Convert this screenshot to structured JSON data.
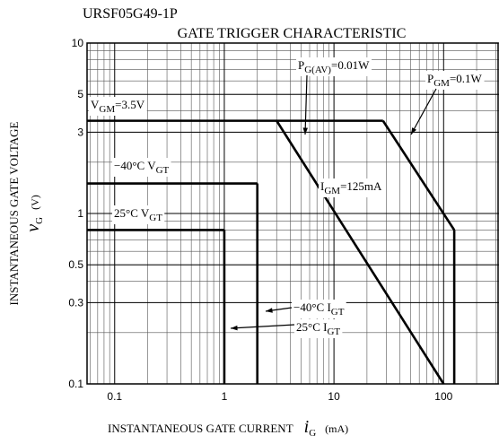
{
  "chart_data": {
    "type": "line",
    "title": "URSF05G49-1P",
    "subtitle": "GATE TRIGGER CHARACTERISTIC",
    "x_label": "INSTANTANEOUS GATE CURRENT",
    "x_symbol": [
      "i",
      "G"
    ],
    "x_unit": "(mA)",
    "y_label": "INSTANTANEOUS GATE VOLTAGE",
    "y_symbol": [
      "v",
      "G"
    ],
    "y_unit": "(V)",
    "log_x": true,
    "log_y": true,
    "grid": true,
    "minor_grid": true,
    "color": "#000000",
    "xlim": [
      0.056,
      320
    ],
    "xticks": [
      0.1,
      1,
      10,
      100
    ],
    "ylim": [
      0.1,
      10
    ],
    "yticks": [
      0.1,
      0.3,
      0.5,
      1,
      3,
      5,
      10
    ],
    "series": [
      {
        "label": [
          "V",
          "GM",
          "=3.5V"
        ],
        "x": [
          0.056,
          28
        ],
        "values": [
          3.5,
          3.5
        ]
      },
      {
        "label": [
          "P",
          "GM",
          "=0.1W"
        ],
        "x": [
          28,
          125
        ],
        "values": [
          3.5,
          0.8
        ]
      },
      {
        "label": [
          "I",
          "GM",
          "=125mA"
        ],
        "x": [
          125,
          125
        ],
        "values": [
          0.8,
          0.1
        ]
      },
      {
        "label": [
          "P",
          "G(AV)",
          "=0.01W"
        ],
        "x": [
          3,
          100
        ],
        "values": [
          3.5,
          0.1
        ]
      },
      {
        "label": [
          "−40°C V",
          "GT",
          ""
        ],
        "x": [
          0.056,
          2
        ],
        "values": [
          1.5,
          1.5
        ]
      },
      {
        "label": [
          "−40°C I",
          "GT",
          ""
        ],
        "x": [
          2,
          2
        ],
        "values": [
          1.5,
          0.1
        ]
      },
      {
        "label": [
          "25°C V",
          "GT",
          ""
        ],
        "x": [
          0.056,
          1
        ],
        "values": [
          0.8,
          0.8
        ]
      },
      {
        "label": [
          "25°C I",
          "GT",
          ""
        ],
        "x": [
          1,
          1
        ],
        "values": [
          0.8,
          0.1
        ]
      }
    ]
  }
}
